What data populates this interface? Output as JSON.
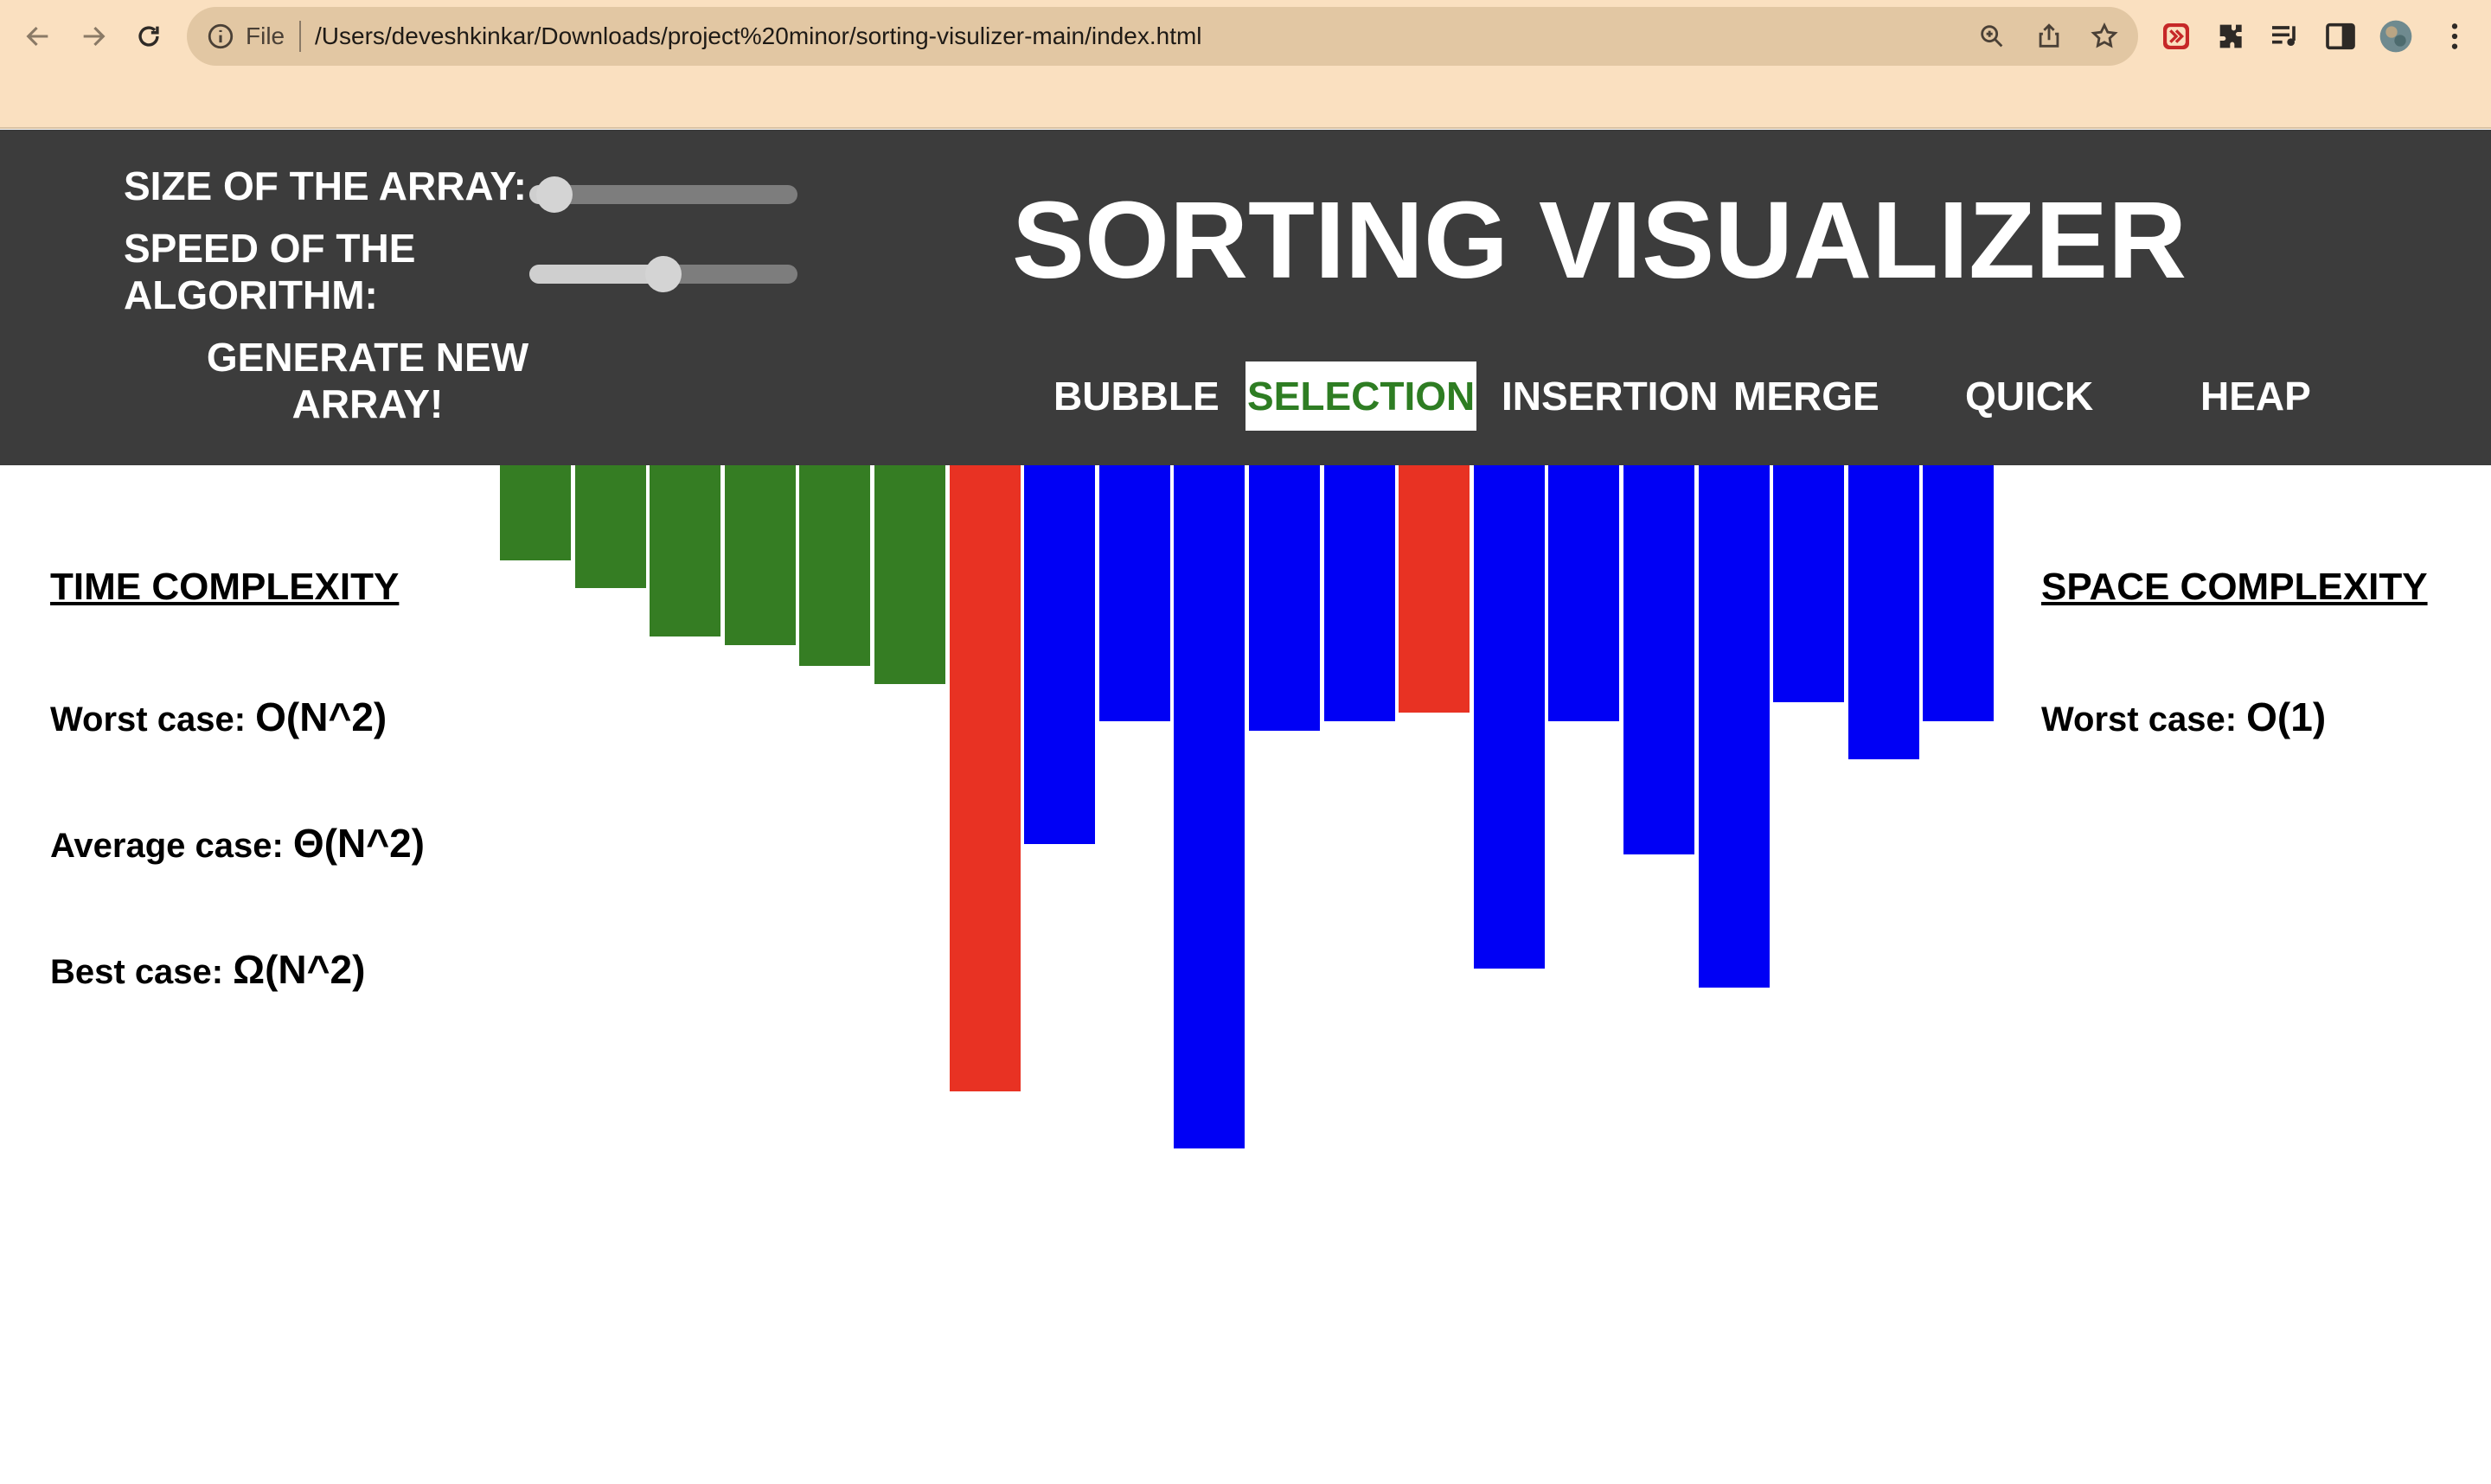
{
  "browser": {
    "file_label": "File",
    "url": "/Users/deveshkinkar/Downloads/project%20minor/sorting-visulizer-main/index.html",
    "icons": [
      "back-icon",
      "forward-icon",
      "reload-icon",
      "info-icon",
      "zoom-icon",
      "share-icon",
      "bookmark-star-icon",
      "extension-icon",
      "puzzle-icon",
      "media-icon",
      "side-panel-icon",
      "profile-avatar",
      "menu-icon"
    ]
  },
  "controls": {
    "size_label": "SIZE OF THE ARRAY:",
    "size_value": 0.03,
    "speed_label_line1": "SPEED OF THE",
    "speed_label_line2": "ALGORITHM:",
    "speed_value": 0.5,
    "generate_line1": "GENERATE NEW",
    "generate_line2": "ARRAY!"
  },
  "title": "SORTING VISUALIZER",
  "algorithms": [
    {
      "label": "BUBBLE",
      "active": false
    },
    {
      "label": "SELECTION",
      "active": true
    },
    {
      "label": "INSERTION",
      "active": false
    },
    {
      "label": "MERGE",
      "active": false
    },
    {
      "label": "QUICK",
      "active": false
    },
    {
      "label": "HEAP",
      "active": false
    }
  ],
  "time_complexity": {
    "heading": "TIME COMPLEXITY",
    "worst_label": "Worst case: ",
    "worst_value": "O(N^2)",
    "average_label": "Average case: ",
    "average_value": "Θ(N^2)",
    "best_label": "Best case: ",
    "best_value": "Ω(N^2)"
  },
  "space_complexity": {
    "heading": "SPACE COMPLEXITY",
    "worst_label": "Worst case: ",
    "worst_value": "O(1)"
  },
  "colors": {
    "sorted": "#357d23",
    "compare": "#e83223",
    "unsorted": "#0000f5"
  },
  "array": [
    {
      "value": 110,
      "state": "sorted"
    },
    {
      "value": 142,
      "state": "sorted"
    },
    {
      "value": 198,
      "state": "sorted"
    },
    {
      "value": 208,
      "state": "sorted"
    },
    {
      "value": 232,
      "state": "sorted"
    },
    {
      "value": 253,
      "state": "sorted"
    },
    {
      "value": 724,
      "state": "compare"
    },
    {
      "value": 438,
      "state": "unsorted"
    },
    {
      "value": 296,
      "state": "unsorted"
    },
    {
      "value": 790,
      "state": "unsorted"
    },
    {
      "value": 307,
      "state": "unsorted"
    },
    {
      "value": 296,
      "state": "unsorted"
    },
    {
      "value": 286,
      "state": "compare"
    },
    {
      "value": 582,
      "state": "unsorted"
    },
    {
      "value": 296,
      "state": "unsorted"
    },
    {
      "value": 450,
      "state": "unsorted"
    },
    {
      "value": 604,
      "state": "unsorted"
    },
    {
      "value": 274,
      "state": "unsorted"
    },
    {
      "value": 340,
      "state": "unsorted"
    },
    {
      "value": 296,
      "state": "unsorted"
    }
  ]
}
